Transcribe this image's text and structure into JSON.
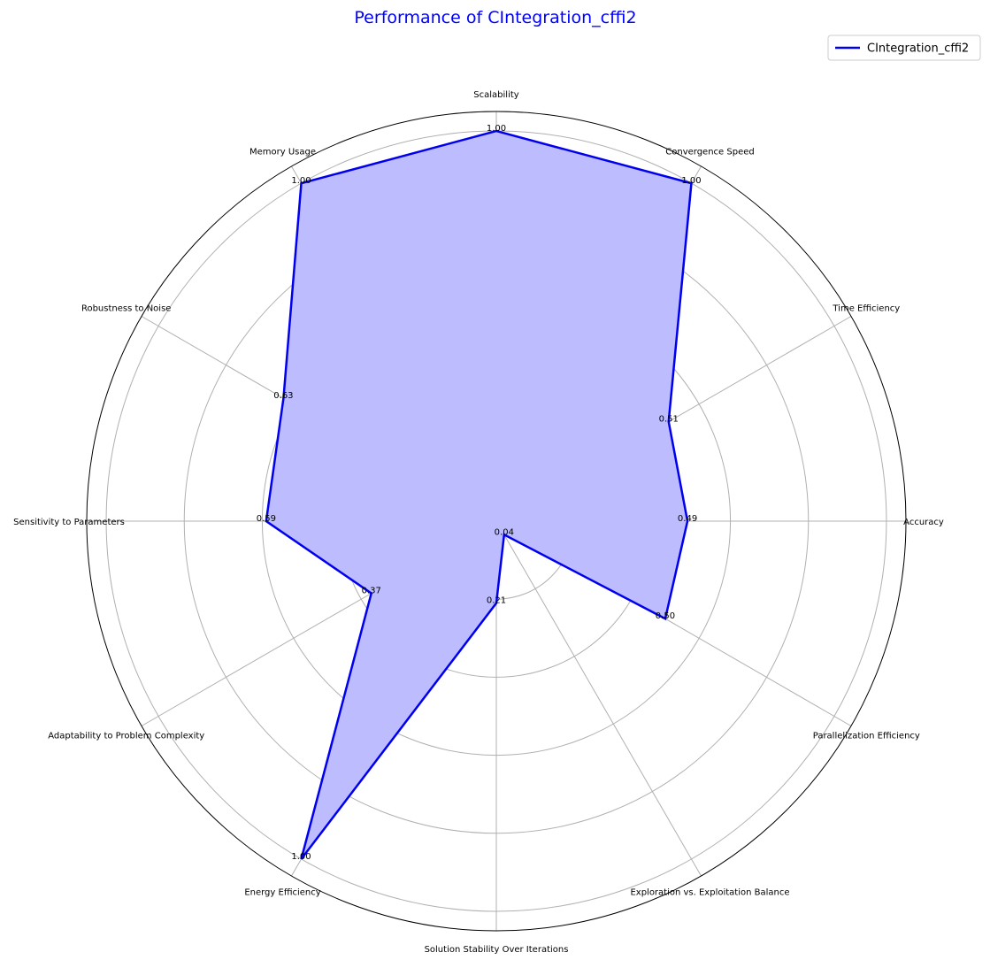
{
  "chart_data": {
    "type": "radar",
    "title": "Performance of CIntegration_cffi2",
    "categories": [
      "Scalability",
      "Convergence Speed",
      "Time Efficiency",
      "Accuracy",
      "Parallelization Efficiency",
      "Exploration vs. Exploitation Balance",
      "Solution Stability Over Iterations",
      "Energy Efficiency",
      "Adaptability to Problem Complexity",
      "Sensitivity to Parameters",
      "Robustness to Noise",
      "Memory Usage"
    ],
    "series": [
      {
        "name": "CIntegration_cffi2",
        "values": [
          1.0,
          1.0,
          0.51,
          0.49,
          0.5,
          0.04,
          0.21,
          1.0,
          0.37,
          0.59,
          0.63,
          1.0
        ],
        "value_labels": [
          "1.00",
          "1.00",
          "0.51",
          "0.49",
          "0.50",
          "0.04",
          "0.21",
          "1.00",
          "0.37",
          "0.59",
          "0.63",
          "1.00"
        ]
      }
    ],
    "rlim": [
      0,
      1.05
    ],
    "grid": true,
    "legend": "top-right",
    "colors": {
      "line": "#0000ee",
      "fill": "#bcbcff",
      "title": "#0000ff",
      "grid": "#b0b0b0"
    }
  }
}
